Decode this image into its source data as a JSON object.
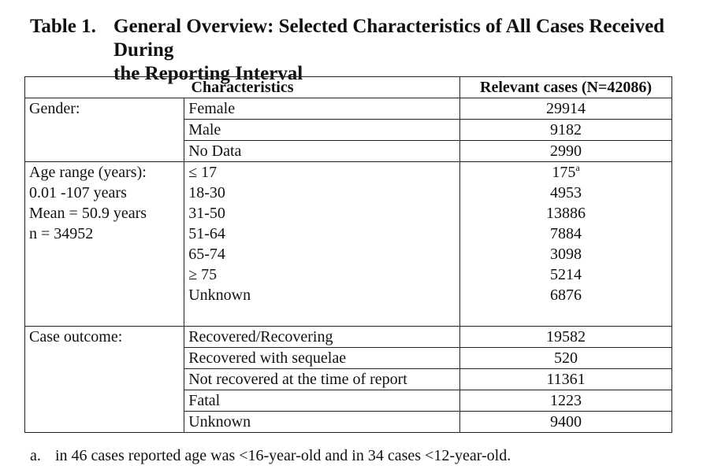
{
  "title": {
    "label": "Table 1.",
    "text": "General Overview: Selected Characteristics of All Cases Received During",
    "text_cont": "the Reporting Interval"
  },
  "table": {
    "headers": {
      "characteristics": "Characteristics",
      "relevant": "Relevant cases (N=42086)"
    },
    "gender": {
      "label": "Gender:",
      "rows": [
        {
          "name": "Female",
          "value": "29914"
        },
        {
          "name": "Male",
          "value": "9182"
        },
        {
          "name": "No Data",
          "value": "2990"
        }
      ]
    },
    "age": {
      "label_lines": [
        "Age range (years):",
        "0.01 -107 years",
        "Mean = 50.9 years",
        "n = 34952"
      ],
      "rows": [
        {
          "name": "≤ 17",
          "value": "175",
          "note": "a"
        },
        {
          "name": "18-30",
          "value": "4953"
        },
        {
          "name": "31-50",
          "value": "13886"
        },
        {
          "name": "51-64",
          "value": "7884"
        },
        {
          "name": "65-74",
          "value": "3098"
        },
        {
          "name": "≥ 75",
          "value": "5214"
        },
        {
          "name": "Unknown",
          "value": "6876"
        }
      ]
    },
    "outcome": {
      "label": "Case outcome:",
      "rows": [
        {
          "name": "Recovered/Recovering",
          "value": "19582"
        },
        {
          "name": "Recovered with sequelae",
          "value": "520"
        },
        {
          "name": "Not recovered at the time of report",
          "value": "11361"
        },
        {
          "name": "Fatal",
          "value": "1223"
        },
        {
          "name": "Unknown",
          "value": "9400"
        }
      ]
    }
  },
  "footnote": {
    "marker": "a.",
    "text": "in 46 cases reported age was <16-year-old and in 34 cases <12-year-old."
  }
}
